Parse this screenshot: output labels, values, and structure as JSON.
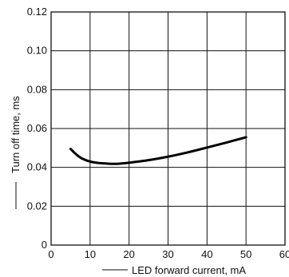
{
  "chart_data": {
    "type": "line",
    "xlabel": "LED forward current, mA",
    "ylabel": "Turn off time, ms",
    "xlim": [
      0,
      60
    ],
    "ylim": [
      0,
      0.12
    ],
    "x_ticks": [
      0,
      10,
      20,
      30,
      40,
      50,
      60
    ],
    "x_tick_labels": [
      "0",
      "10",
      "20",
      "30",
      "40",
      "50",
      "60"
    ],
    "y_ticks": [
      0,
      0.02,
      0.04,
      0.06,
      0.08,
      0.1,
      0.12
    ],
    "y_tick_labels": [
      "0",
      "0.02",
      "0.04",
      "0.06",
      "0.08",
      "0.10",
      "0.12"
    ],
    "grid": true,
    "series": [
      {
        "x": [
          5,
          6,
          7,
          8,
          10,
          12,
          14,
          16,
          18,
          20,
          25,
          30,
          35,
          40,
          45,
          50
        ],
        "y": [
          0.0495,
          0.0475,
          0.0458,
          0.0445,
          0.043,
          0.0423,
          0.042,
          0.0418,
          0.042,
          0.0424,
          0.0437,
          0.0455,
          0.0477,
          0.0502,
          0.0528,
          0.0555
        ]
      }
    ]
  }
}
